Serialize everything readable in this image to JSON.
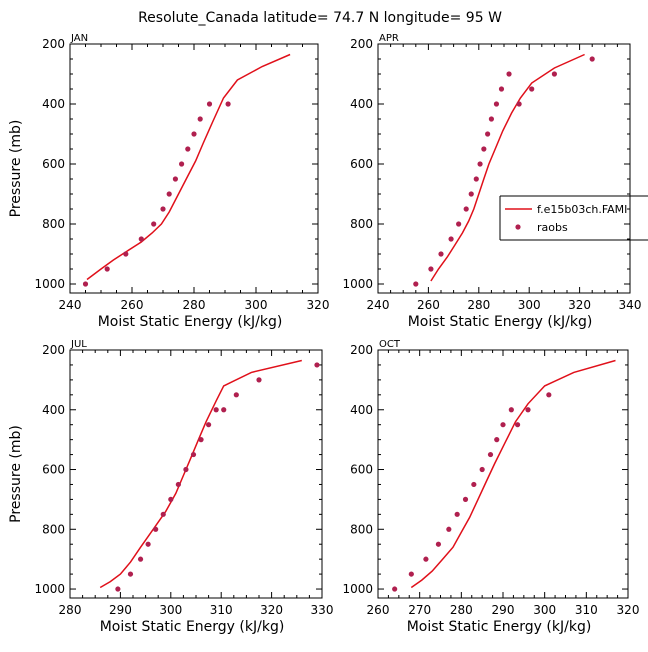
{
  "title": "Resolute_Canada   latitude= 74.7 N longitude= 95 W",
  "colors": {
    "model_line": "#e0101a",
    "obs_point": "#b0204f"
  },
  "legend": {
    "panel_index": 1,
    "placement": "right",
    "entries": [
      {
        "label": "f.e15b03ch.FAMI",
        "kind": "line"
      },
      {
        "label": "raobs",
        "kind": "point"
      }
    ]
  },
  "chart_data": [
    {
      "type": "line",
      "panel_label": "JAN",
      "xlabel": "Moist Static Energy (kJ/kg)",
      "ylabel": "Pressure (mb)",
      "xlim": [
        240,
        320
      ],
      "ylim": [
        1030,
        200
      ],
      "xticks": [
        240,
        260,
        280,
        300,
        320
      ],
      "yticks": [
        200,
        400,
        600,
        800,
        1000
      ],
      "series": [
        {
          "name": "f.e15b03ch.FAMI",
          "style": "line",
          "x": [
            245.5,
            250,
            254,
            258.5,
            263,
            266.5,
            269.5,
            272,
            274,
            276,
            278,
            280.5,
            283,
            286,
            289.5,
            294,
            302,
            311
          ],
          "y": [
            985,
            950,
            920,
            890,
            860,
            830,
            800,
            760,
            720,
            680,
            640,
            590,
            530,
            460,
            380,
            320,
            275,
            235
          ]
        },
        {
          "name": "raobs",
          "style": "point",
          "x": [
            245,
            252,
            258,
            263,
            267,
            270,
            272,
            274,
            276,
            278,
            280,
            282,
            285,
            291
          ],
          "y": [
            1000,
            950,
            900,
            850,
            800,
            750,
            700,
            650,
            600,
            550,
            500,
            450,
            400,
            400
          ]
        }
      ]
    },
    {
      "type": "line",
      "panel_label": "APR",
      "xlabel": "Moist Static Energy (kJ/kg)",
      "ylabel": "",
      "xlim": [
        240,
        340
      ],
      "ylim": [
        1030,
        200
      ],
      "xticks": [
        240,
        260,
        280,
        300,
        320,
        340
      ],
      "yticks": [
        200,
        400,
        600,
        800,
        1000
      ],
      "series": [
        {
          "name": "f.e15b03ch.FAMI",
          "style": "line",
          "x": [
            261,
            264,
            267.5,
            270.5,
            273.5,
            276,
            278,
            280,
            282,
            284,
            286.5,
            289.5,
            293,
            296.5,
            301,
            310,
            322
          ],
          "y": [
            990,
            950,
            910,
            870,
            830,
            790,
            750,
            700,
            650,
            600,
            550,
            490,
            430,
            380,
            330,
            280,
            235
          ]
        },
        {
          "name": "raobs",
          "style": "point",
          "x": [
            255,
            261,
            265,
            269,
            272,
            275,
            277,
            279,
            280.5,
            282,
            283.5,
            285,
            287,
            289,
            292,
            296,
            301,
            310,
            325
          ],
          "y": [
            1000,
            950,
            900,
            850,
            800,
            750,
            700,
            650,
            600,
            550,
            500,
            450,
            400,
            350,
            300,
            400,
            350,
            300,
            250
          ]
        }
      ]
    },
    {
      "type": "line",
      "panel_label": "JUL",
      "xlabel": "Moist Static Energy (kJ/kg)",
      "ylabel": "Pressure (mb)",
      "xlim": [
        280,
        330
      ],
      "ylim": [
        1030,
        200
      ],
      "xticks": [
        280,
        290,
        300,
        310,
        320,
        330
      ],
      "yticks": [
        200,
        400,
        600,
        800,
        1000
      ],
      "series": [
        {
          "name": "f.e15b03ch.FAMI",
          "style": "line",
          "x": [
            286,
            288,
            290,
            292,
            294,
            296.5,
            299,
            301,
            302.5,
            304,
            305.5,
            307,
            309,
            310.5,
            316,
            326
          ],
          "y": [
            995,
            975,
            950,
            910,
            860,
            800,
            740,
            680,
            620,
            560,
            500,
            440,
            370,
            320,
            275,
            235
          ]
        },
        {
          "name": "raobs",
          "style": "point",
          "x": [
            289.5,
            292,
            294,
            295.5,
            297,
            298.5,
            300,
            301.5,
            303,
            304.5,
            306,
            307.5,
            309,
            310.5,
            313,
            317.5,
            329
          ],
          "y": [
            1000,
            950,
            900,
            850,
            800,
            750,
            700,
            650,
            600,
            550,
            500,
            450,
            400,
            400,
            350,
            300,
            250
          ]
        }
      ]
    },
    {
      "type": "line",
      "panel_label": "OCT",
      "xlabel": "Moist Static Energy (kJ/kg)",
      "ylabel": "",
      "xlim": [
        260,
        320
      ],
      "ylim": [
        1030,
        200
      ],
      "xticks": [
        260,
        270,
        280,
        290,
        300,
        310,
        320
      ],
      "yticks": [
        200,
        400,
        600,
        800,
        1000
      ],
      "series": [
        {
          "name": "f.e15b03ch.FAMI",
          "style": "line",
          "x": [
            268,
            270.5,
            273,
            275.5,
            278,
            280,
            282,
            284,
            286,
            288,
            290.5,
            293,
            296,
            300,
            307,
            317
          ],
          "y": [
            995,
            970,
            940,
            900,
            860,
            810,
            760,
            700,
            640,
            580,
            510,
            440,
            380,
            320,
            275,
            235
          ]
        },
        {
          "name": "raobs",
          "style": "point",
          "x": [
            264,
            268,
            271.5,
            274.5,
            277,
            279,
            281,
            283,
            285,
            287,
            288.5,
            290,
            292,
            293.5,
            296,
            301
          ],
          "y": [
            1000,
            950,
            900,
            850,
            800,
            750,
            700,
            650,
            600,
            550,
            500,
            450,
            400,
            450,
            400,
            350
          ]
        }
      ]
    }
  ]
}
